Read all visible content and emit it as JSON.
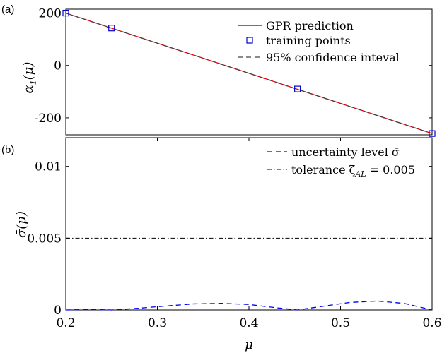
{
  "chart_data": [
    {
      "type": "line",
      "panel_label": "(a)",
      "ylabel": {
        "main": "α",
        "sub": "1",
        "rest": "(μ)"
      },
      "xlim": [
        0.2,
        0.6
      ],
      "ylim": [
        -265,
        215
      ],
      "yticks": [
        200,
        0,
        -200
      ],
      "ytick_labels": [
        "200",
        "0",
        "-200"
      ],
      "grid": false,
      "legend_position": "top-right",
      "legend": [
        "GPR prediction",
        "training points",
        "95% confidence inteval"
      ],
      "series": [
        {
          "name": "GPR prediction",
          "kind": "line",
          "color": "#e8000b",
          "x": [
            0.2,
            0.6
          ],
          "y": [
            200,
            -260
          ]
        },
        {
          "name": "95% confidence inteval",
          "kind": "dashed",
          "color": "#444444",
          "x": [
            0.2,
            0.6
          ],
          "y": [
            200,
            -260
          ]
        },
        {
          "name": "training points",
          "kind": "markers",
          "color": "#0000cc",
          "x": [
            0.2,
            0.25,
            0.453,
            0.6
          ],
          "y": [
            200,
            143,
            -90,
            -260
          ]
        }
      ]
    },
    {
      "type": "line",
      "panel_label": "(b)",
      "ylabel": {
        "main": "σ̄(μ)"
      },
      "xlabel": "μ",
      "xlim": [
        0.2,
        0.6
      ],
      "ylim": [
        0,
        0.012
      ],
      "yticks": [
        0,
        0.005,
        0.01
      ],
      "ytick_labels": [
        "0",
        "0.005",
        "0.01"
      ],
      "xticks": [
        0.2,
        0.3,
        0.4,
        0.5,
        0.6
      ],
      "xtick_labels": [
        "0.2",
        "0.3",
        "0.4",
        "0.5",
        "0.6"
      ],
      "grid": false,
      "legend_position": "top-right",
      "legend": [
        "uncertainty level σ̄",
        "tolerance ζ",
        "AL",
        " = 0.005"
      ],
      "series": [
        {
          "name": "uncertainty level σ̄",
          "kind": "dashed",
          "color": "#0000ee",
          "x": [
            0.2,
            0.225,
            0.25,
            0.28,
            0.31,
            0.34,
            0.37,
            0.4,
            0.43,
            0.453,
            0.48,
            0.51,
            0.54,
            0.57,
            0.6
          ],
          "y": [
            0,
            3e-05,
            0,
            0.00012,
            0.00028,
            0.00042,
            0.00046,
            0.00038,
            0.00015,
            0,
            0.00025,
            0.00052,
            0.00062,
            0.00045,
            0
          ]
        },
        {
          "name": "tolerance",
          "kind": "dashdot",
          "color": "#000000",
          "x": [
            0.2,
            0.6
          ],
          "y": [
            0.005,
            0.005
          ]
        }
      ]
    }
  ]
}
